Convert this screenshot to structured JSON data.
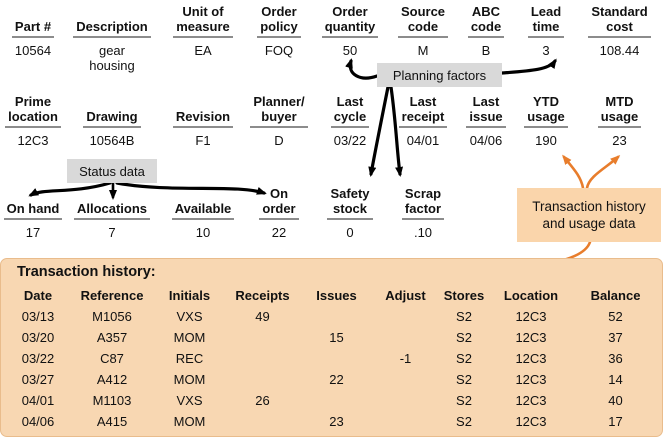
{
  "record": {
    "row1": [
      {
        "label": "Part #",
        "value": "10564"
      },
      {
        "label": "Description",
        "value": "gear\nhousing"
      },
      {
        "label": "Unit of\nmeasure",
        "value": "EA"
      },
      {
        "label": "Order\npolicy",
        "value": "FOQ"
      },
      {
        "label": "Order\nquantity",
        "value": "50"
      },
      {
        "label": "Source\ncode",
        "value": "M"
      },
      {
        "label": "ABC\ncode",
        "value": "B"
      },
      {
        "label": "Lead\ntime",
        "value": "3"
      },
      {
        "label": "Standard\ncost",
        "value": "108.44"
      }
    ],
    "row2": [
      {
        "label": "Prime\nlocation",
        "value": "12C3"
      },
      {
        "label": "Drawing",
        "value": "10564B"
      },
      {
        "label": "Revision",
        "value": "F1"
      },
      {
        "label": "Planner/\nbuyer",
        "value": "D"
      },
      {
        "label": "Last\ncycle",
        "value": "03/22"
      },
      {
        "label": "Last\nreceipt",
        "value": "04/01"
      },
      {
        "label": "Last\nissue",
        "value": "04/06"
      },
      {
        "label": "YTD\nusage",
        "value": "190"
      },
      {
        "label": "MTD\nusage",
        "value": "23"
      }
    ],
    "row3": [
      {
        "label": "On hand",
        "value": "17"
      },
      {
        "label": "Allocations",
        "value": "7"
      },
      {
        "label": "Available",
        "value": "10"
      },
      {
        "label": "On\norder",
        "value": "22"
      },
      {
        "label": "Safety\nstock",
        "value": "0"
      },
      {
        "label": "Scrap\nfactor",
        "value": ".10"
      }
    ]
  },
  "callouts": {
    "planning_factors": {
      "label": "Planning factors"
    },
    "status_data": {
      "label": "Status data"
    },
    "transaction_usage": {
      "label": "Transaction history\nand usage data"
    }
  },
  "transaction_history": {
    "title": "Transaction history:",
    "columns": [
      "Date",
      "Reference",
      "Initials",
      "Receipts",
      "Issues",
      "Adjust",
      "Stores",
      "Location",
      "Balance"
    ],
    "rows": [
      [
        "03/13",
        "M1056",
        "VXS",
        "49",
        "",
        "",
        "S2",
        "12C3",
        "52"
      ],
      [
        "03/20",
        "A357",
        "MOM",
        "",
        "15",
        "",
        "S2",
        "12C3",
        "37"
      ],
      [
        "03/22",
        "C87",
        "REC",
        "",
        "",
        "-1",
        "S2",
        "12C3",
        "36"
      ],
      [
        "03/27",
        "A412",
        "MOM",
        "",
        "22",
        "",
        "S2",
        "12C3",
        "14"
      ],
      [
        "04/01",
        "M1103",
        "VXS",
        "26",
        "",
        "",
        "S2",
        "12C3",
        "40"
      ],
      [
        "04/06",
        "A415",
        "MOM",
        "",
        "23",
        "",
        "S2",
        "12C3",
        "17"
      ]
    ]
  },
  "colors": {
    "panel_bg": "#F8D7B2",
    "panel_border": "#E9BC8C",
    "callout_gray_bg": "#D9D9D9",
    "callout_orange_bg": "#FAD5AB",
    "arrow_black": "#000000",
    "arrow_orange": "#E87D2C",
    "underline": "#8C8C8C",
    "text": "#111111"
  }
}
